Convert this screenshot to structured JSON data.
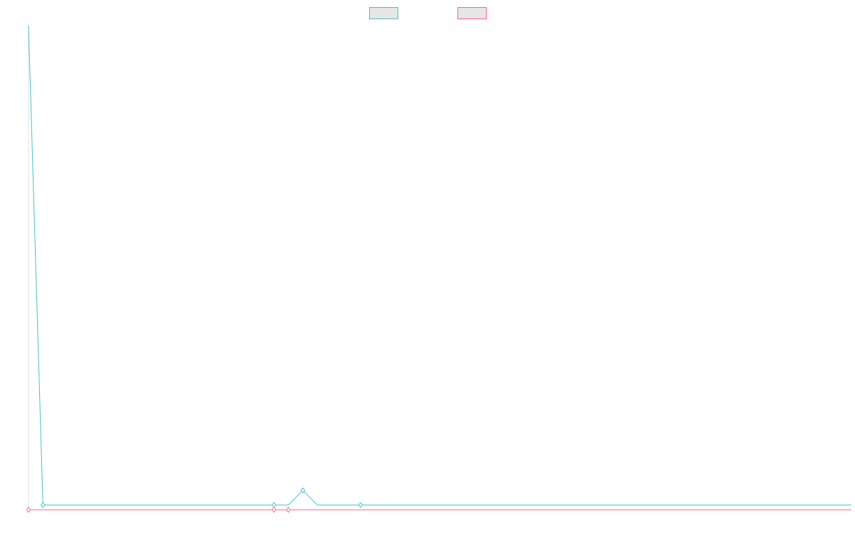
{
  "chart_data": {
    "type": "line",
    "title": "",
    "xlabel": "",
    "ylabel": "",
    "grid": false,
    "legend_placement": "top-center",
    "x": [
      0,
      1,
      2,
      3,
      4,
      5,
      6,
      7,
      8,
      9,
      10,
      11,
      12,
      13,
      14,
      15,
      16,
      17,
      18,
      19,
      20,
      21,
      22,
      23,
      24,
      25,
      26,
      27,
      28,
      29,
      30,
      31,
      32,
      33,
      34,
      35,
      36,
      37,
      38,
      39,
      40,
      41,
      42,
      43,
      44,
      45,
      46,
      47,
      48,
      49,
      50,
      51,
      52,
      53,
      54,
      55,
      56,
      57
    ],
    "xlim": [
      0,
      57
    ],
    "ylim": [
      0,
      1000
    ],
    "series": [
      {
        "name": "",
        "color": "#4bc0c0",
        "values": [
          1000,
          10,
          10,
          10,
          10,
          10,
          10,
          10,
          10,
          10,
          10,
          10,
          10,
          10,
          10,
          10,
          10,
          10,
          10,
          40,
          10,
          10,
          10,
          10,
          10,
          10,
          10,
          10,
          10,
          10,
          10,
          10,
          10,
          10,
          10,
          10,
          10,
          10,
          10,
          10,
          10,
          10,
          10,
          10,
          10,
          10,
          10,
          10,
          10,
          10,
          10,
          10,
          10,
          10,
          10,
          10,
          10,
          10
        ],
        "markers": [
          1,
          17,
          19,
          23
        ]
      },
      {
        "name": "",
        "color": "#ff6384",
        "values": [
          0,
          0,
          0,
          0,
          0,
          0,
          0,
          0,
          0,
          0,
          0,
          0,
          0,
          0,
          0,
          0,
          0,
          0,
          0,
          0,
          0,
          0,
          0,
          0,
          0,
          0,
          0,
          0,
          0,
          0,
          0,
          0,
          0,
          0,
          0,
          0,
          0,
          0,
          0,
          0,
          0,
          0,
          0,
          0,
          0,
          0,
          0,
          0,
          0,
          0,
          0,
          0,
          0,
          0,
          0,
          0,
          0,
          0
        ],
        "markers": [
          0,
          17,
          18
        ]
      }
    ]
  }
}
